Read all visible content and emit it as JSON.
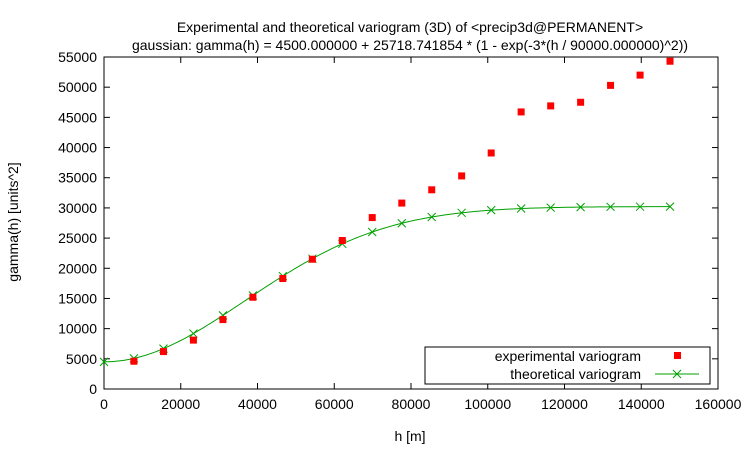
{
  "chart_data": {
    "type": "scatter",
    "title": "Experimental and theoretical variogram (3D) of <precip3d@PERMANENT>",
    "subtitle": "gaussian: gamma(h) = 4500.000000 + 25718.741854 * (1 - exp(-3*(h / 90000.000000)^2))",
    "xlabel": "h [m]",
    "ylabel": "gamma(h) [units^2]",
    "xlim": [
      0,
      160000
    ],
    "ylim": [
      0,
      55000
    ],
    "x_ticks": [
      0,
      20000,
      40000,
      60000,
      80000,
      100000,
      120000,
      140000,
      160000
    ],
    "y_ticks": [
      0,
      5000,
      10000,
      15000,
      20000,
      25000,
      30000,
      35000,
      40000,
      45000,
      50000,
      55000
    ],
    "grid": false,
    "legend_position": "bottom-right",
    "series": [
      {
        "name": "experimental variogram",
        "marker": "square",
        "color": "#ff0000",
        "points": [
          [
            7800,
            4600
          ],
          [
            15500,
            6200
          ],
          [
            23300,
            8100
          ],
          [
            31000,
            11500
          ],
          [
            38800,
            15200
          ],
          [
            46600,
            18300
          ],
          [
            54300,
            21500
          ],
          [
            62100,
            24600
          ],
          [
            69900,
            28400
          ],
          [
            77600,
            30800
          ],
          [
            85400,
            33000
          ],
          [
            93200,
            35300
          ],
          [
            100900,
            39100
          ],
          [
            108700,
            45900
          ],
          [
            116400,
            46900
          ],
          [
            124200,
            47500
          ],
          [
            132000,
            50300
          ],
          [
            139700,
            52000
          ],
          [
            147500,
            54300
          ]
        ]
      },
      {
        "name": "theoretical variogram",
        "marker": "x",
        "color": "#00a000",
        "nugget": 4500,
        "sill": 25718.741854,
        "range": 90000,
        "model": "gaussian",
        "x": [
          0,
          7800,
          15500,
          23300,
          31000,
          38800,
          46600,
          54300,
          62100,
          69900,
          77600,
          85400,
          93200,
          100900,
          108700,
          116400,
          124200,
          132000,
          139700,
          147500
        ]
      }
    ]
  }
}
